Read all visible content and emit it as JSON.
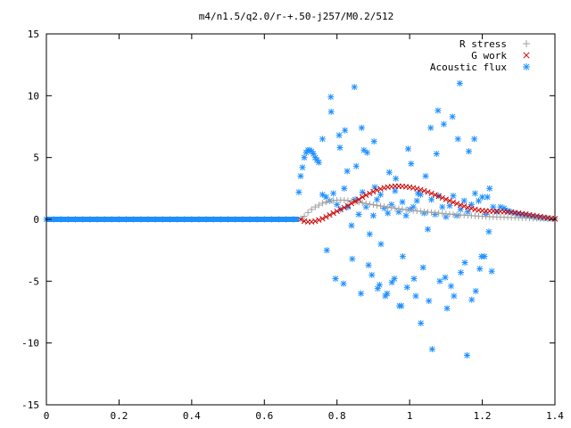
{
  "chart_data": {
    "type": "scatter",
    "title": "m4/n1.5/q2.0/r-+.50-j257/M0.2/512",
    "xlabel": "",
    "ylabel": "",
    "xlim": [
      0,
      1.4
    ],
    "ylim": [
      -15,
      15
    ],
    "xticks": [
      0,
      0.2,
      0.4,
      0.6,
      0.8,
      1,
      1.2,
      1.4
    ],
    "xtick_labels": [
      "0",
      "0.2",
      "0.4",
      "0.6",
      "0.8",
      "1",
      "1.2",
      "1.4"
    ],
    "yticks": [
      -15,
      -10,
      -5,
      0,
      5,
      10,
      15
    ],
    "ytick_labels": [
      "-15",
      "-10",
      "-5",
      "0",
      "5",
      "10",
      "15"
    ],
    "grid": false,
    "legend_position": "top-right",
    "series": [
      {
        "name": "R stress",
        "marker": "+",
        "color": "#a0a0a0",
        "x": [
          0.7,
          0.71,
          0.72,
          0.73,
          0.74,
          0.75,
          0.76,
          0.77,
          0.78,
          0.79,
          0.8,
          0.81,
          0.82,
          0.83,
          0.84,
          0.85,
          0.86,
          0.87,
          0.88,
          0.89,
          0.9,
          0.91,
          0.92,
          0.93,
          0.94,
          0.95,
          0.96,
          0.97,
          0.98,
          0.99,
          1.0,
          1.01,
          1.02,
          1.03,
          1.04,
          1.05,
          1.06,
          1.07,
          1.08,
          1.09,
          1.1,
          1.11,
          1.12,
          1.13,
          1.14,
          1.15,
          1.16,
          1.17,
          1.18,
          1.19,
          1.2,
          1.21,
          1.22,
          1.23,
          1.24,
          1.25,
          1.26,
          1.27,
          1.28,
          1.29,
          1.3,
          1.31,
          1.32,
          1.33,
          1.34,
          1.35,
          1.36,
          1.37,
          1.38,
          1.39,
          1.4
        ],
        "y": [
          0.05,
          0.25,
          0.55,
          0.8,
          1.0,
          1.15,
          1.3,
          1.4,
          1.48,
          1.52,
          1.55,
          1.56,
          1.55,
          1.52,
          1.48,
          1.43,
          1.38,
          1.33,
          1.28,
          1.23,
          1.18,
          1.13,
          1.08,
          1.03,
          0.98,
          0.94,
          0.9,
          0.86,
          0.82,
          0.78,
          0.75,
          0.72,
          0.68,
          0.65,
          0.62,
          0.59,
          0.56,
          0.53,
          0.5,
          0.48,
          0.45,
          0.43,
          0.4,
          0.38,
          0.36,
          0.34,
          0.32,
          0.3,
          0.28,
          0.26,
          0.25,
          0.23,
          0.22,
          0.2,
          0.19,
          0.18,
          0.17,
          0.16,
          0.15,
          0.14,
          0.13,
          0.12,
          0.11,
          0.1,
          0.09,
          0.08,
          0.07,
          0.06,
          0.05,
          0.04,
          0.03
        ]
      },
      {
        "name": "G work",
        "marker": "x",
        "color": "#cc0000",
        "x": [
          0.7,
          0.71,
          0.72,
          0.73,
          0.74,
          0.75,
          0.76,
          0.77,
          0.78,
          0.79,
          0.8,
          0.81,
          0.82,
          0.83,
          0.84,
          0.85,
          0.86,
          0.87,
          0.88,
          0.89,
          0.9,
          0.91,
          0.92,
          0.93,
          0.94,
          0.95,
          0.96,
          0.97,
          0.98,
          0.99,
          1.0,
          1.01,
          1.02,
          1.03,
          1.04,
          1.05,
          1.06,
          1.07,
          1.08,
          1.09,
          1.1,
          1.11,
          1.12,
          1.13,
          1.14,
          1.15,
          1.16,
          1.17,
          1.18,
          1.19,
          1.2,
          1.21,
          1.22,
          1.23,
          1.24,
          1.25,
          1.26,
          1.27,
          1.28,
          1.29,
          1.3,
          1.31,
          1.32,
          1.33,
          1.34,
          1.35,
          1.36,
          1.37,
          1.38,
          1.39,
          1.4
        ],
        "y": [
          0.0,
          -0.15,
          -0.2,
          -0.2,
          -0.15,
          -0.05,
          0.05,
          0.2,
          0.35,
          0.5,
          0.65,
          0.8,
          0.95,
          1.1,
          1.28,
          1.45,
          1.62,
          1.8,
          1.96,
          2.1,
          2.24,
          2.36,
          2.46,
          2.55,
          2.61,
          2.65,
          2.68,
          2.68,
          2.67,
          2.64,
          2.6,
          2.55,
          2.48,
          2.4,
          2.31,
          2.21,
          2.1,
          1.98,
          1.86,
          1.74,
          1.62,
          1.5,
          1.38,
          1.27,
          1.16,
          1.06,
          0.96,
          0.88,
          0.8,
          0.74,
          0.7,
          0.68,
          0.67,
          0.66,
          0.65,
          0.64,
          0.62,
          0.6,
          0.57,
          0.54,
          0.5,
          0.46,
          0.42,
          0.37,
          0.32,
          0.27,
          0.22,
          0.17,
          0.12,
          0.08,
          0.04
        ]
      },
      {
        "name": "Acoustic flux",
        "marker": "*",
        "color": "#1e90ff",
        "x": [
          0.0,
          0.02,
          0.04,
          0.06,
          0.08,
          0.1,
          0.12,
          0.14,
          0.16,
          0.18,
          0.2,
          0.22,
          0.24,
          0.26,
          0.28,
          0.3,
          0.32,
          0.34,
          0.36,
          0.38,
          0.4,
          0.42,
          0.44,
          0.46,
          0.48,
          0.5,
          0.52,
          0.54,
          0.56,
          0.58,
          0.6,
          0.62,
          0.64,
          0.66,
          0.68,
          0.695,
          0.7,
          0.705,
          0.71,
          0.715,
          0.72,
          0.725,
          0.73,
          0.735,
          0.74,
          0.745,
          0.75,
          0.76,
          0.77,
          0.78,
          0.79,
          0.8,
          0.81,
          0.82,
          0.83,
          0.84,
          0.85,
          0.86,
          0.87,
          0.88,
          0.89,
          0.9,
          0.91,
          0.92,
          0.93,
          0.94,
          0.95,
          0.96,
          0.97,
          0.98,
          0.99,
          1.0,
          1.01,
          1.02,
          1.03,
          1.04,
          1.05,
          1.06,
          1.07,
          1.08,
          1.09,
          1.1,
          1.11,
          1.12,
          1.13,
          1.14,
          1.15,
          1.16,
          1.17,
          1.18,
          1.19,
          1.2,
          1.21,
          1.22,
          1.23,
          1.24,
          1.25,
          1.26,
          1.27,
          1.28,
          1.29,
          1.3,
          1.31,
          1.32,
          1.33,
          1.34,
          1.35,
          1.36,
          1.37,
          1.38,
          1.39,
          1.4,
          0.76,
          0.772,
          0.784,
          0.796,
          0.808,
          0.818,
          0.828,
          0.842,
          0.853,
          0.866,
          0.874,
          0.887,
          0.896,
          0.904,
          0.912,
          0.921,
          0.933,
          0.944,
          0.951,
          0.962,
          0.972,
          0.981,
          0.993,
          1.004,
          1.012,
          1.023,
          1.031,
          1.044,
          1.053,
          1.062,
          1.074,
          1.083,
          1.094,
          1.103,
          1.114,
          1.122,
          1.133,
          1.141,
          1.152,
          1.163,
          1.171,
          1.182,
          1.193,
          1.206,
          1.214,
          1.226,
          0.783,
          0.806,
          0.822,
          0.848,
          0.868,
          0.883,
          0.902,
          0.917,
          0.938,
          0.958,
          0.977,
          0.996,
          1.017,
          1.037,
          1.058,
          1.078,
          1.098,
          1.118,
          1.138,
          1.158,
          1.178,
          1.198,
          1.218
        ],
        "y": [
          0,
          0,
          0,
          0,
          0,
          0,
          0,
          0,
          0,
          0,
          0,
          0,
          0,
          0,
          0,
          0,
          0,
          0,
          0,
          0,
          0,
          0,
          0,
          0,
          0,
          0,
          0,
          0,
          0,
          0,
          0,
          0,
          0,
          0,
          0,
          2.2,
          3.5,
          4.2,
          5.0,
          5.4,
          5.6,
          5.6,
          5.5,
          5.3,
          5.0,
          4.8,
          4.6,
          2.0,
          1.8,
          1.5,
          2.1,
          1.2,
          0.8,
          2.5,
          1.0,
          -0.5,
          1.6,
          0.4,
          2.2,
          1.0,
          -1.2,
          0.3,
          1.6,
          2.0,
          0.9,
          0.5,
          1.2,
          2.3,
          0.6,
          1.4,
          0.3,
          0.8,
          1.0,
          1.5,
          2.0,
          0.5,
          -0.8,
          1.6,
          0.4,
          1.9,
          1.0,
          0.2,
          1.1,
          1.9,
          0.3,
          0.8,
          1.5,
          0.6,
          1.2,
          2.1,
          1.5,
          1.8,
          0.4,
          2.5,
          1.0,
          0.6,
          1.0,
          0.9,
          0.7,
          0.6,
          0.5,
          0.4,
          0.35,
          0.3,
          0.25,
          0.2,
          0.15,
          0.12,
          0.1,
          0.07,
          0.05,
          0.03,
          6.5,
          -2.5,
          8.7,
          -4.8,
          5.8,
          -5.2,
          3.9,
          -3.2,
          4.3,
          -6.0,
          5.6,
          -3.7,
          -4.5,
          2.6,
          -5.6,
          -2.0,
          -6.2,
          3.8,
          -5.1,
          3.3,
          -7.0,
          -3.0,
          -5.5,
          4.5,
          -4.8,
          2.1,
          -8.4,
          3.5,
          -6.6,
          -10.5,
          5.3,
          -5.0,
          7.7,
          -7.2,
          -5.4,
          -6.2,
          6.5,
          -4.3,
          -3.5,
          5.5,
          -6.5,
          -5.8,
          -4.0,
          -3.0,
          1.8,
          -4.2,
          9.9,
          6.8,
          7.2,
          10.7,
          7.4,
          5.4,
          6.3,
          -5.3,
          -6.0,
          -4.8,
          -7.0,
          5.7,
          -6.2,
          -3.9,
          7.4,
          8.8,
          -4.7,
          8.3,
          11.0,
          -11.0,
          6.5,
          -3.0,
          -1.0
        ]
      }
    ]
  }
}
